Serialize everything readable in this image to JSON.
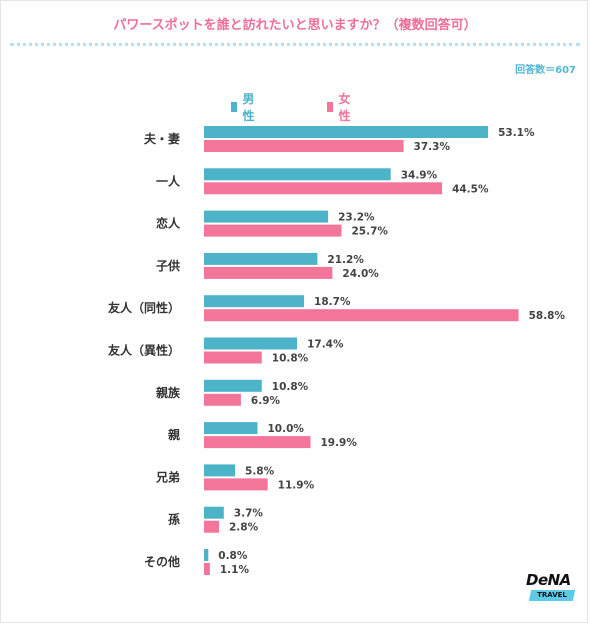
{
  "title": "パワースポットを誰と訪れたいと思いますか？（複数回答可）",
  "respondents": "回答数＝607",
  "colors": {
    "male": "#4db3c8",
    "female": "#f4759a",
    "title": "#ef6f98",
    "respondents": "#52b8d8"
  },
  "logo": {
    "word": "DeNA",
    "sub": "TRAVEL"
  },
  "chart_data": {
    "type": "bar",
    "orientation": "horizontal",
    "categories": [
      "夫・妻",
      "一人",
      "恋人",
      "子供",
      "友人（同性）",
      "友人（異性）",
      "親族",
      "親",
      "兄弟",
      "孫",
      "その他"
    ],
    "series": [
      {
        "name": "男性",
        "values": [
          53.1,
          34.9,
          23.2,
          21.2,
          18.7,
          17.4,
          10.8,
          10.0,
          5.8,
          3.7,
          0.8
        ]
      },
      {
        "name": "女性",
        "values": [
          37.3,
          44.5,
          25.7,
          24.0,
          58.8,
          10.8,
          6.9,
          19.9,
          11.9,
          2.8,
          1.1
        ]
      }
    ],
    "value_labels": [
      [
        "53.1%",
        "34.9%",
        "23.2%",
        "21.2%",
        "18.7%",
        "17.4%",
        "10.8%",
        "10.0%",
        "5.8%",
        "3.7%",
        "0.8%"
      ],
      [
        "37.3%",
        "44.5%",
        "25.7%",
        "24.0%",
        "58.8%",
        "10.8%",
        "6.9%",
        "19.9%",
        "11.9%",
        "2.8%",
        "1.1%"
      ]
    ],
    "legend_position": "top",
    "grid": false
  }
}
